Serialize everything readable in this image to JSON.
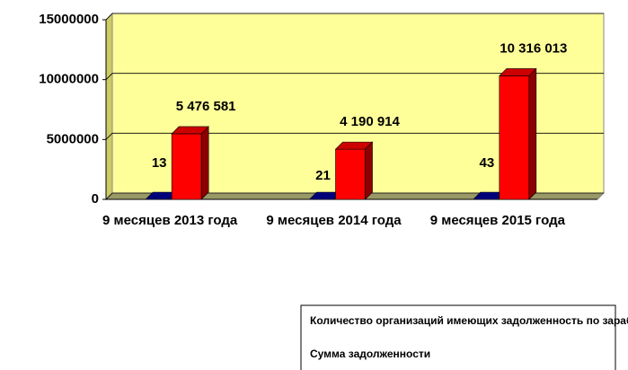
{
  "chart_data": {
    "type": "bar3d",
    "categories": [
      "9 месяцев 2013 года",
      "9 месяцев 2014 года",
      "9 месяцев 2015 года"
    ],
    "series": [
      {
        "name": "Количество организаций имеющих задолженность по заработноц плате",
        "color": "#000099",
        "values": [
          13,
          21,
          43
        ]
      },
      {
        "name": "Сумма задолженности",
        "color": "#ff0000",
        "values": [
          5476581,
          4190914,
          10316013
        ],
        "value_labels": [
          "5 476 581",
          "4 190 914",
          "10 316 013"
        ]
      }
    ],
    "ylim": [
      0,
      15000000
    ],
    "yticks": [
      0,
      5000000,
      10000000,
      15000000
    ],
    "grid": true
  }
}
